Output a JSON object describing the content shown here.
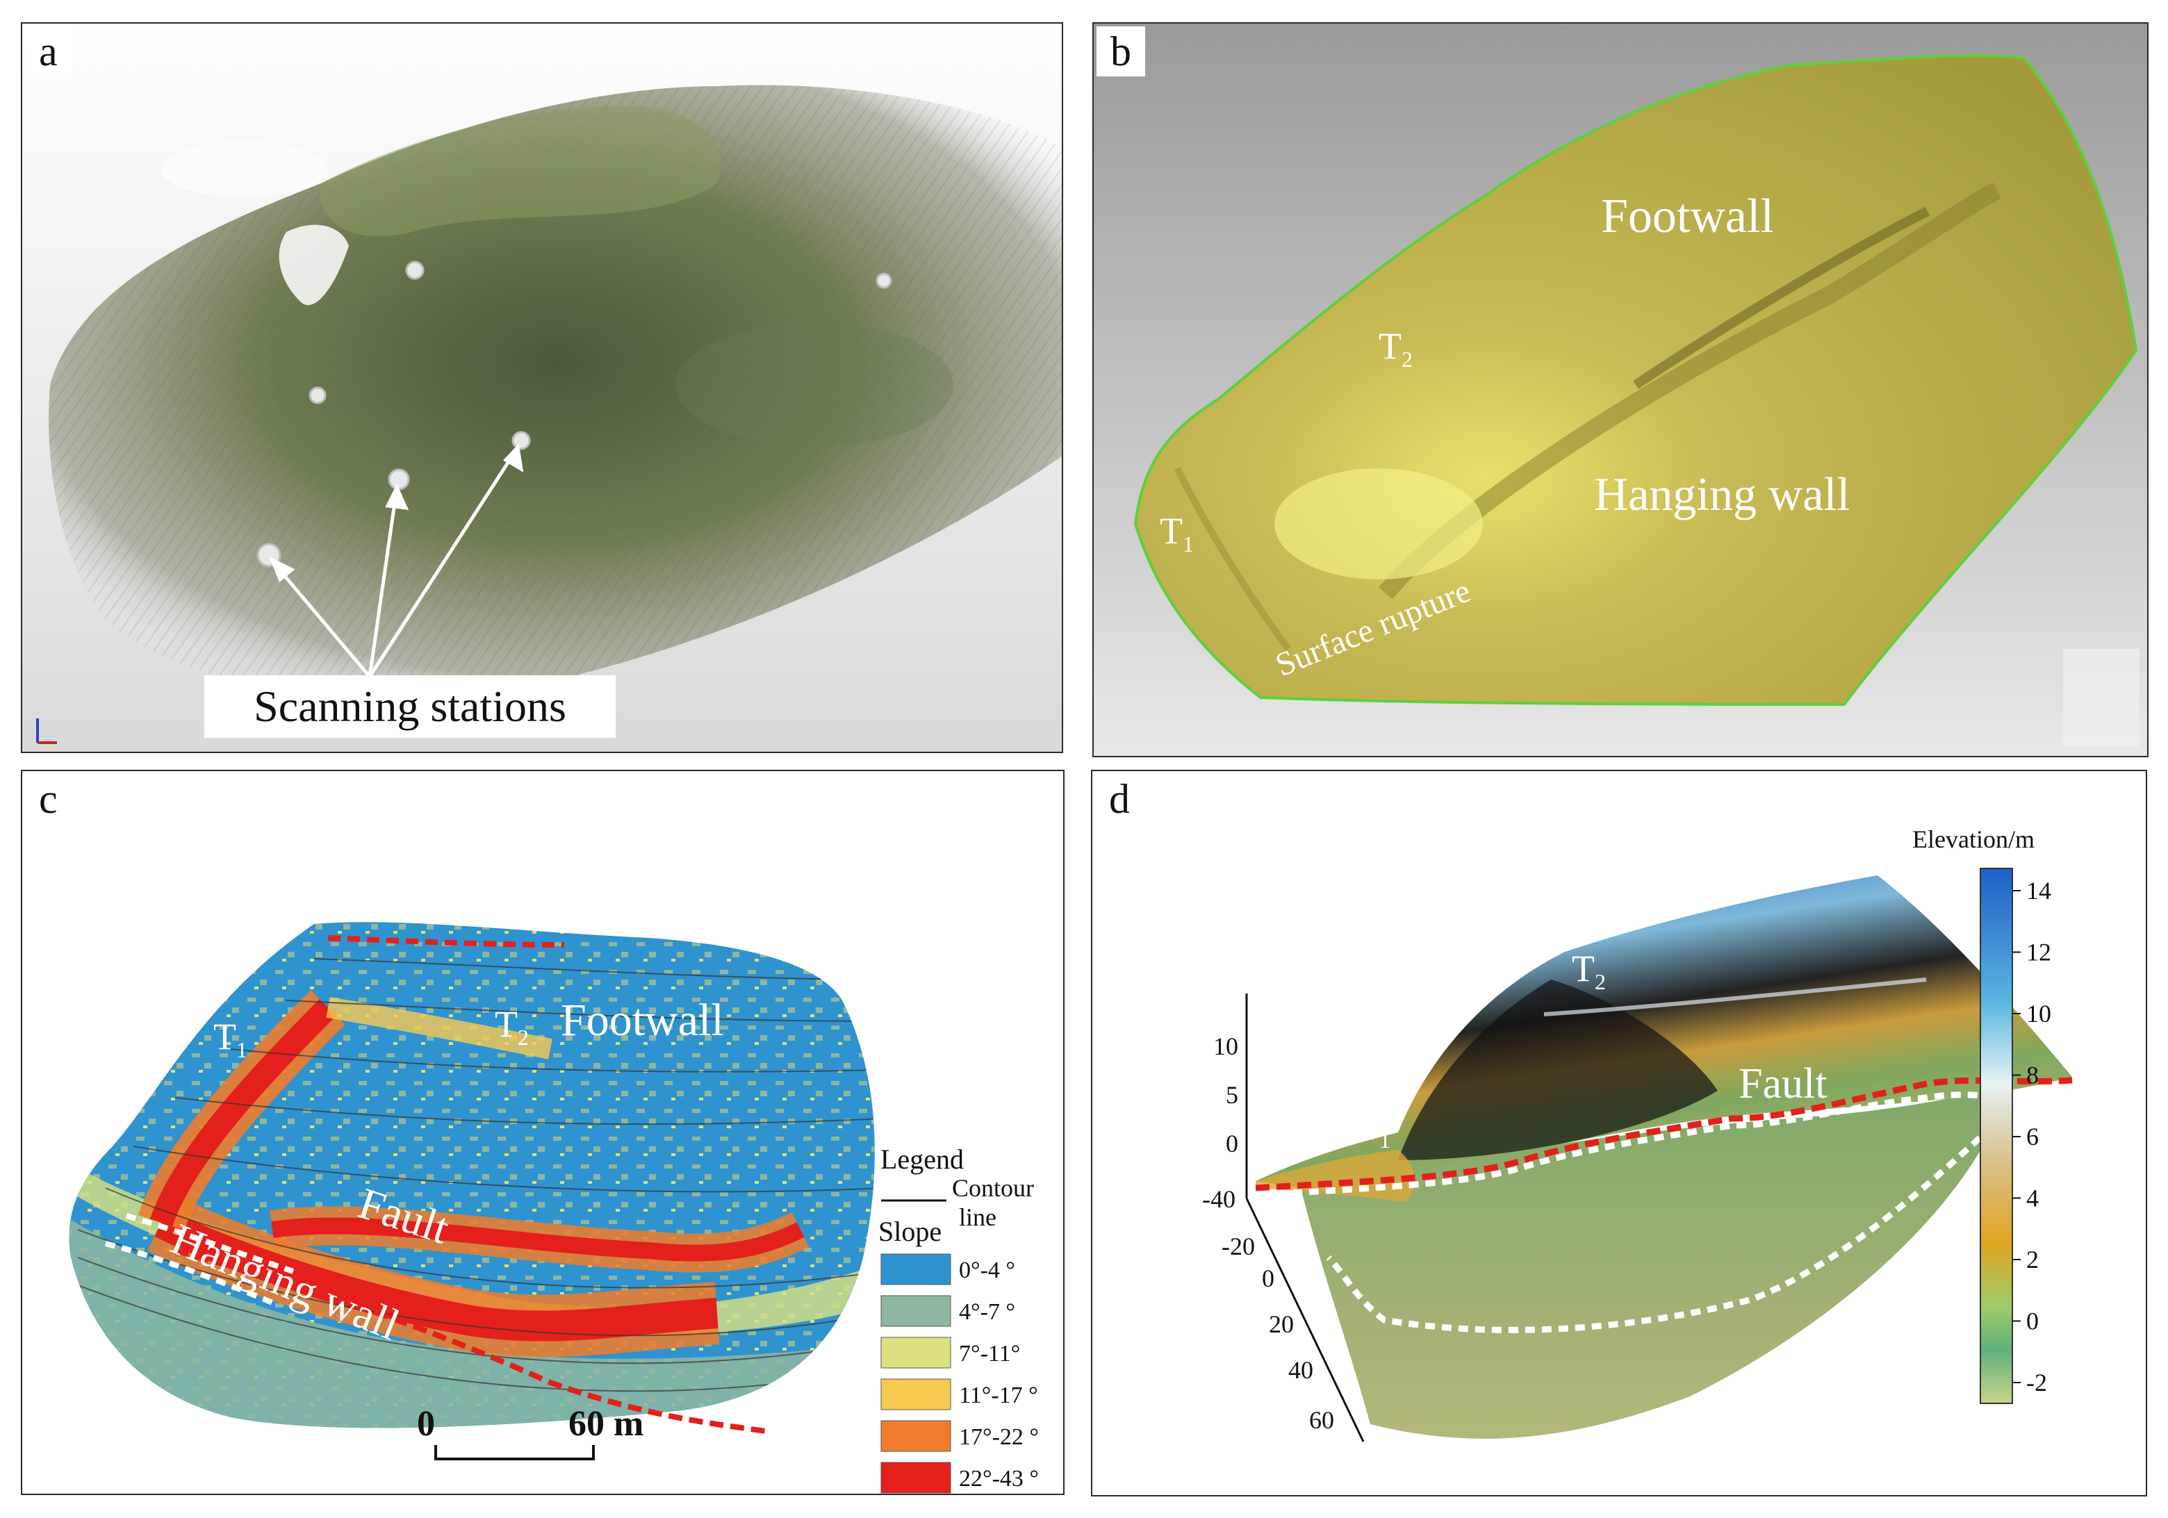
{
  "panels": {
    "a": {
      "label": "a",
      "scanning_label": "Scanning stations"
    },
    "b": {
      "label": "b",
      "footwall": "Footwall",
      "t2": "T",
      "t2_sub": "2",
      "hanging_wall": "Hanging wall",
      "t1": "T",
      "t1_sub": "1",
      "surface_rupture": "Surface rupture"
    },
    "c": {
      "label": "c",
      "t1": "T",
      "t1_sub": "1",
      "t2": "T",
      "t2_sub": "2",
      "footwall": "Footwall",
      "fault": "Fault",
      "hanging_wall": "Hanging wall",
      "legend_title": "Legend",
      "contour_label_1": "Contour",
      "contour_label_2": "line",
      "slope_title": "Slope",
      "slope_classes": [
        {
          "label": "0°-4 °",
          "color": "#2f93cf"
        },
        {
          "label": "4°-7 °",
          "color": "#8db7a1"
        },
        {
          "label": "7°-11°",
          "color": "#d9e27f"
        },
        {
          "label": "11°-17 °",
          "color": "#f7cb52"
        },
        {
          "label": "17°-22 °",
          "color": "#f07c2c"
        },
        {
          "label": "22°-43 °",
          "color": "#e3201b"
        }
      ],
      "scale_left": "0",
      "scale_right": "60 m"
    },
    "d": {
      "label": "d",
      "t1": "T",
      "t1_sub": "1",
      "t2": "T",
      "t2_sub": "2",
      "fault": "Fault",
      "colorbar_title": "Elevation/m",
      "colorbar_ticks": [
        "14",
        "12",
        "10",
        "8",
        "6",
        "4",
        "2",
        "0",
        "-2"
      ],
      "axis_z_ticks": [
        "10",
        "5",
        "0"
      ],
      "axis_y_ticks": [
        "-40",
        "-20",
        "0",
        "20",
        "40",
        "60"
      ]
    }
  }
}
